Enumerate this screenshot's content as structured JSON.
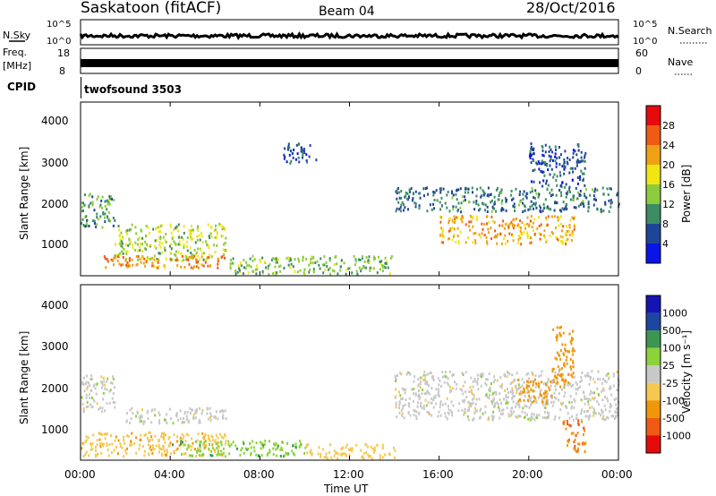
{
  "header": {
    "station": "Saskatoon (fitACF)",
    "beam": "Beam 04",
    "date": "28/Oct/2016"
  },
  "noise_panel": {
    "left_label": "N.Sky",
    "right_label": "N.Search",
    "ticks_left": [
      "10^5",
      "10^0"
    ],
    "ticks_right": [
      "10^5",
      "10^0"
    ]
  },
  "freq_panel": {
    "left_label": "Freq.",
    "left_unit": "[MHz]",
    "right_label": "Nave",
    "ticks_left": [
      "18",
      "8"
    ],
    "ticks_right": [
      "60",
      "0"
    ]
  },
  "cpid": {
    "label": "CPID",
    "value": "twofsound 3503"
  },
  "power_panel": {
    "ylabel": "Slant Range [km]",
    "yticks": [
      "4000",
      "3000",
      "2000",
      "1000"
    ],
    "colorbar_label": "Power [dB]",
    "colorbar_ticks": [
      "28",
      "24",
      "20",
      "16",
      "12",
      "8",
      "4"
    ],
    "colors": [
      "#0a14e6",
      "#1e4696",
      "#3c8c64",
      "#8ccc3c",
      "#f0e614",
      "#f0a014",
      "#f05a14",
      "#e60a0a"
    ]
  },
  "velocity_panel": {
    "ylabel": "Slant Range [km]",
    "yticks": [
      "4000",
      "3000",
      "2000",
      "1000"
    ],
    "colorbar_label": "Velocity [m s⁻¹]",
    "colorbar_ticks": [
      "1000",
      "500",
      "100",
      "25",
      "-25",
      "-100",
      "-500",
      "-1000"
    ],
    "colors": [
      "#e60a0a",
      "#f05a14",
      "#f0960a",
      "#f5c850",
      "#c8c8c8",
      "#8cd23c",
      "#3c9650",
      "#1e46a0",
      "#1414b4"
    ]
  },
  "xaxis": {
    "ticks": [
      "00:00",
      "04:00",
      "08:00",
      "12:00",
      "16:00",
      "20:00",
      "00:00"
    ],
    "label": "Time UT"
  },
  "chart_data": {
    "type": "heatmap",
    "x_range_hours": [
      0,
      24
    ],
    "y_range_km": [
      180,
      4500
    ],
    "power_range_db": [
      0,
      30
    ],
    "velocity_range_ms": [
      -1000,
      1000
    ],
    "power_regions": [
      {
        "t": [
          0.0,
          1.5
        ],
        "r": [
          1400,
          2300
        ],
        "db": 10
      },
      {
        "t": [
          1.5,
          6.5
        ],
        "r": [
          600,
          1500
        ],
        "db": 14
      },
      {
        "t": [
          1.0,
          6.5
        ],
        "r": [
          400,
          700
        ],
        "db": 22
      },
      {
        "t": [
          6.5,
          14.0
        ],
        "r": [
          250,
          700
        ],
        "db": 12
      },
      {
        "t": [
          9.0,
          10.5
        ],
        "r": [
          3000,
          3500
        ],
        "db": 6
      },
      {
        "t": [
          14.0,
          24.0
        ],
        "r": [
          1800,
          2400
        ],
        "db": 8
      },
      {
        "t": [
          16.0,
          22.0
        ],
        "r": [
          1000,
          1700
        ],
        "db": 20
      },
      {
        "t": [
          20.0,
          22.5
        ],
        "r": [
          2400,
          3500
        ],
        "db": 6
      }
    ],
    "velocity_regions": [
      {
        "t": [
          0.0,
          1.5
        ],
        "r": [
          1400,
          2300
        ],
        "v": 0
      },
      {
        "t": [
          0.0,
          6.5
        ],
        "r": [
          300,
          900
        ],
        "v": -80
      },
      {
        "t": [
          2.0,
          6.5
        ],
        "r": [
          1100,
          1500
        ],
        "v": 0
      },
      {
        "t": [
          4.0,
          10.0
        ],
        "r": [
          300,
          700
        ],
        "v": 80
      },
      {
        "t": [
          10.0,
          14.0
        ],
        "r": [
          250,
          600
        ],
        "v": -60
      },
      {
        "t": [
          14.0,
          24.0
        ],
        "r": [
          1200,
          2400
        ],
        "v": 0
      },
      {
        "t": [
          19.5,
          21.0
        ],
        "r": [
          1600,
          2200
        ],
        "v": -300
      },
      {
        "t": [
          21.0,
          22.0
        ],
        "r": [
          2000,
          3500
        ],
        "v": -300
      },
      {
        "t": [
          21.5,
          22.5
        ],
        "r": [
          400,
          1200
        ],
        "v": -500
      }
    ]
  }
}
